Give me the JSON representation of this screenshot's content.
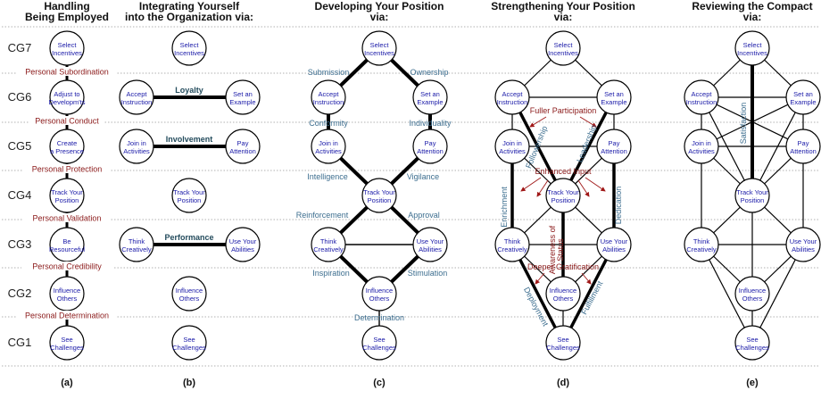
{
  "headers": {
    "a": [
      "Handling",
      "Being Employed"
    ],
    "b": [
      "Integrating Yourself",
      "into the Organization via:"
    ],
    "c": [
      "Developing Your Position",
      "via:"
    ],
    "d": [
      "Strengthening Your Position",
      "via:"
    ],
    "e": [
      "Reviewing the Compact",
      "via:"
    ]
  },
  "panel_labels": [
    "(a)",
    "(b)",
    "(c)",
    "(d)",
    "(e)"
  ],
  "row_labels": [
    "CG7",
    "CG6",
    "CG5",
    "CG4",
    "CG3",
    "CG2",
    "CG1"
  ],
  "nodes": {
    "select": [
      "Select",
      "Incentives"
    ],
    "accept": [
      "Accept",
      "Instruction"
    ],
    "example": [
      "Set an",
      "Example"
    ],
    "join": [
      "Join in",
      "Activities"
    ],
    "pay": [
      "Pay",
      "Attention"
    ],
    "track": [
      "Track Your",
      "Position"
    ],
    "think": [
      "Think",
      "Creatively"
    ],
    "use": [
      "Use Your",
      "Abilities"
    ],
    "influence": [
      "Influence",
      "Others"
    ],
    "see": [
      "See",
      "Challenges"
    ]
  },
  "panel_a_nodes": {
    "cg7": [
      "Select",
      "Incentives"
    ],
    "cg6": [
      "Adjust to",
      "Developm'ts"
    ],
    "cg5": [
      "Create",
      "a Presence"
    ],
    "cg4": [
      "Track Your",
      "Position"
    ],
    "cg3": [
      "Be",
      "Resourceful"
    ],
    "cg2": [
      "Influence",
      "Others"
    ],
    "cg1": [
      "See",
      "Challenges"
    ]
  },
  "panel_a_labels": [
    "Personal Subordination",
    "Personal Conduct",
    "Personal Protection",
    "Personal Validation",
    "Personal Credibility",
    "Personal Determination"
  ],
  "panel_b_labels": [
    "Loyalty",
    "Involvement",
    "Performance"
  ],
  "panel_c_labels": {
    "submission": "Submission",
    "ownership": "Ownership",
    "conformity": "Conformity",
    "individuality": "Individuality",
    "intelligence": "Intelligence",
    "vigilance": "Vigilance",
    "reinforcement": "Reinforcement",
    "approval": "Approval",
    "inspiration": "Inspiration",
    "stimulation": "Stimulation",
    "determination": "Determination"
  },
  "panel_d_labels": {
    "fuller": "Fuller Participation",
    "followership": "Followership",
    "leadership": "Leadership",
    "enhanced": "Enhanced Input",
    "enrichment": "Enrichment",
    "dedication": "Dedication",
    "awareness": [
      "Awareness of",
      "Status"
    ],
    "deeper": "Deeper Gratification",
    "deployment": "Deployment",
    "fulfillment": "Fulfillment"
  },
  "panel_e_labels": {
    "satisfaction": "Satisfaction"
  }
}
